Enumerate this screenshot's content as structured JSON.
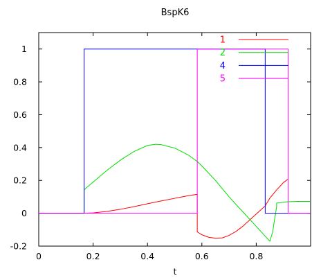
{
  "chart_data": {
    "type": "line",
    "title": "BspK6",
    "xlabel": "t",
    "ylabel": "",
    "xlim": [
      0,
      1
    ],
    "ylim": [
      -0.2,
      1.1
    ],
    "grid": false,
    "legend_position": "top-right",
    "x_ticks": [
      0,
      0.2,
      0.4,
      0.6,
      0.8
    ],
    "x_tick_labels": [
      "0",
      "0.2",
      "0.4",
      "0.6",
      "0.8"
    ],
    "y_ticks": [
      -0.2,
      0,
      0.2,
      0.4,
      0.6,
      0.8,
      1
    ],
    "y_tick_labels": [
      "-0.2",
      "0",
      "0.2",
      "0.4",
      "0.6",
      "0.8",
      "1"
    ],
    "series": [
      {
        "name": "1",
        "color": "#ff0000",
        "points": [
          [
            0,
            0
          ],
          [
            0.167,
            0
          ],
          [
            0.2,
            0.002
          ],
          [
            0.25,
            0.011
          ],
          [
            0.3,
            0.024
          ],
          [
            0.35,
            0.04
          ],
          [
            0.4,
            0.058
          ],
          [
            0.45,
            0.075
          ],
          [
            0.5,
            0.091
          ],
          [
            0.55,
            0.107
          ],
          [
            0.583,
            0.115
          ],
          [
            0.583,
            -0.113
          ],
          [
            0.6,
            -0.131
          ],
          [
            0.625,
            -0.146
          ],
          [
            0.65,
            -0.152
          ],
          [
            0.675,
            -0.15
          ],
          [
            0.7,
            -0.135
          ],
          [
            0.725,
            -0.111
          ],
          [
            0.75,
            -0.08
          ],
          [
            0.775,
            -0.042
          ],
          [
            0.8,
            -0.005
          ],
          [
            0.833,
            0.045
          ],
          [
            0.85,
            0.092
          ],
          [
            0.875,
            0.142
          ],
          [
            0.9,
            0.187
          ],
          [
            0.917,
            0.208
          ]
        ]
      },
      {
        "name": "2",
        "color": "#00dd00",
        "points": [
          [
            0,
            0
          ],
          [
            0.167,
            0
          ],
          [
            0.167,
            0.143
          ],
          [
            0.2,
            0.19
          ],
          [
            0.25,
            0.26
          ],
          [
            0.3,
            0.323
          ],
          [
            0.35,
            0.376
          ],
          [
            0.4,
            0.413
          ],
          [
            0.43,
            0.42
          ],
          [
            0.45,
            0.418
          ],
          [
            0.5,
            0.397
          ],
          [
            0.55,
            0.355
          ],
          [
            0.583,
            0.315
          ],
          [
            0.6,
            0.288
          ],
          [
            0.65,
            0.2
          ],
          [
            0.7,
            0.1
          ],
          [
            0.75,
            0.01
          ],
          [
            0.8,
            -0.08
          ],
          [
            0.833,
            -0.14
          ],
          [
            0.85,
            -0.17
          ],
          [
            0.86,
            -0.117
          ],
          [
            0.875,
            0.04
          ],
          [
            0.875,
            0.062
          ],
          [
            0.917,
            0.07
          ],
          [
            0.95,
            0.072
          ],
          [
            1,
            0.072
          ]
        ]
      },
      {
        "name": "4",
        "color": "#0000ff",
        "points": [
          [
            0,
            0
          ],
          [
            0.167,
            0
          ],
          [
            0.167,
            1
          ],
          [
            0.833,
            1
          ],
          [
            0.833,
            0
          ],
          [
            1,
            0
          ]
        ]
      },
      {
        "name": "5",
        "color": "#ff00ff",
        "points": [
          [
            0,
            0
          ],
          [
            0.583,
            0
          ],
          [
            0.583,
            1
          ],
          [
            0.917,
            1
          ],
          [
            0.917,
            0
          ],
          [
            1,
            0
          ]
        ]
      }
    ]
  }
}
